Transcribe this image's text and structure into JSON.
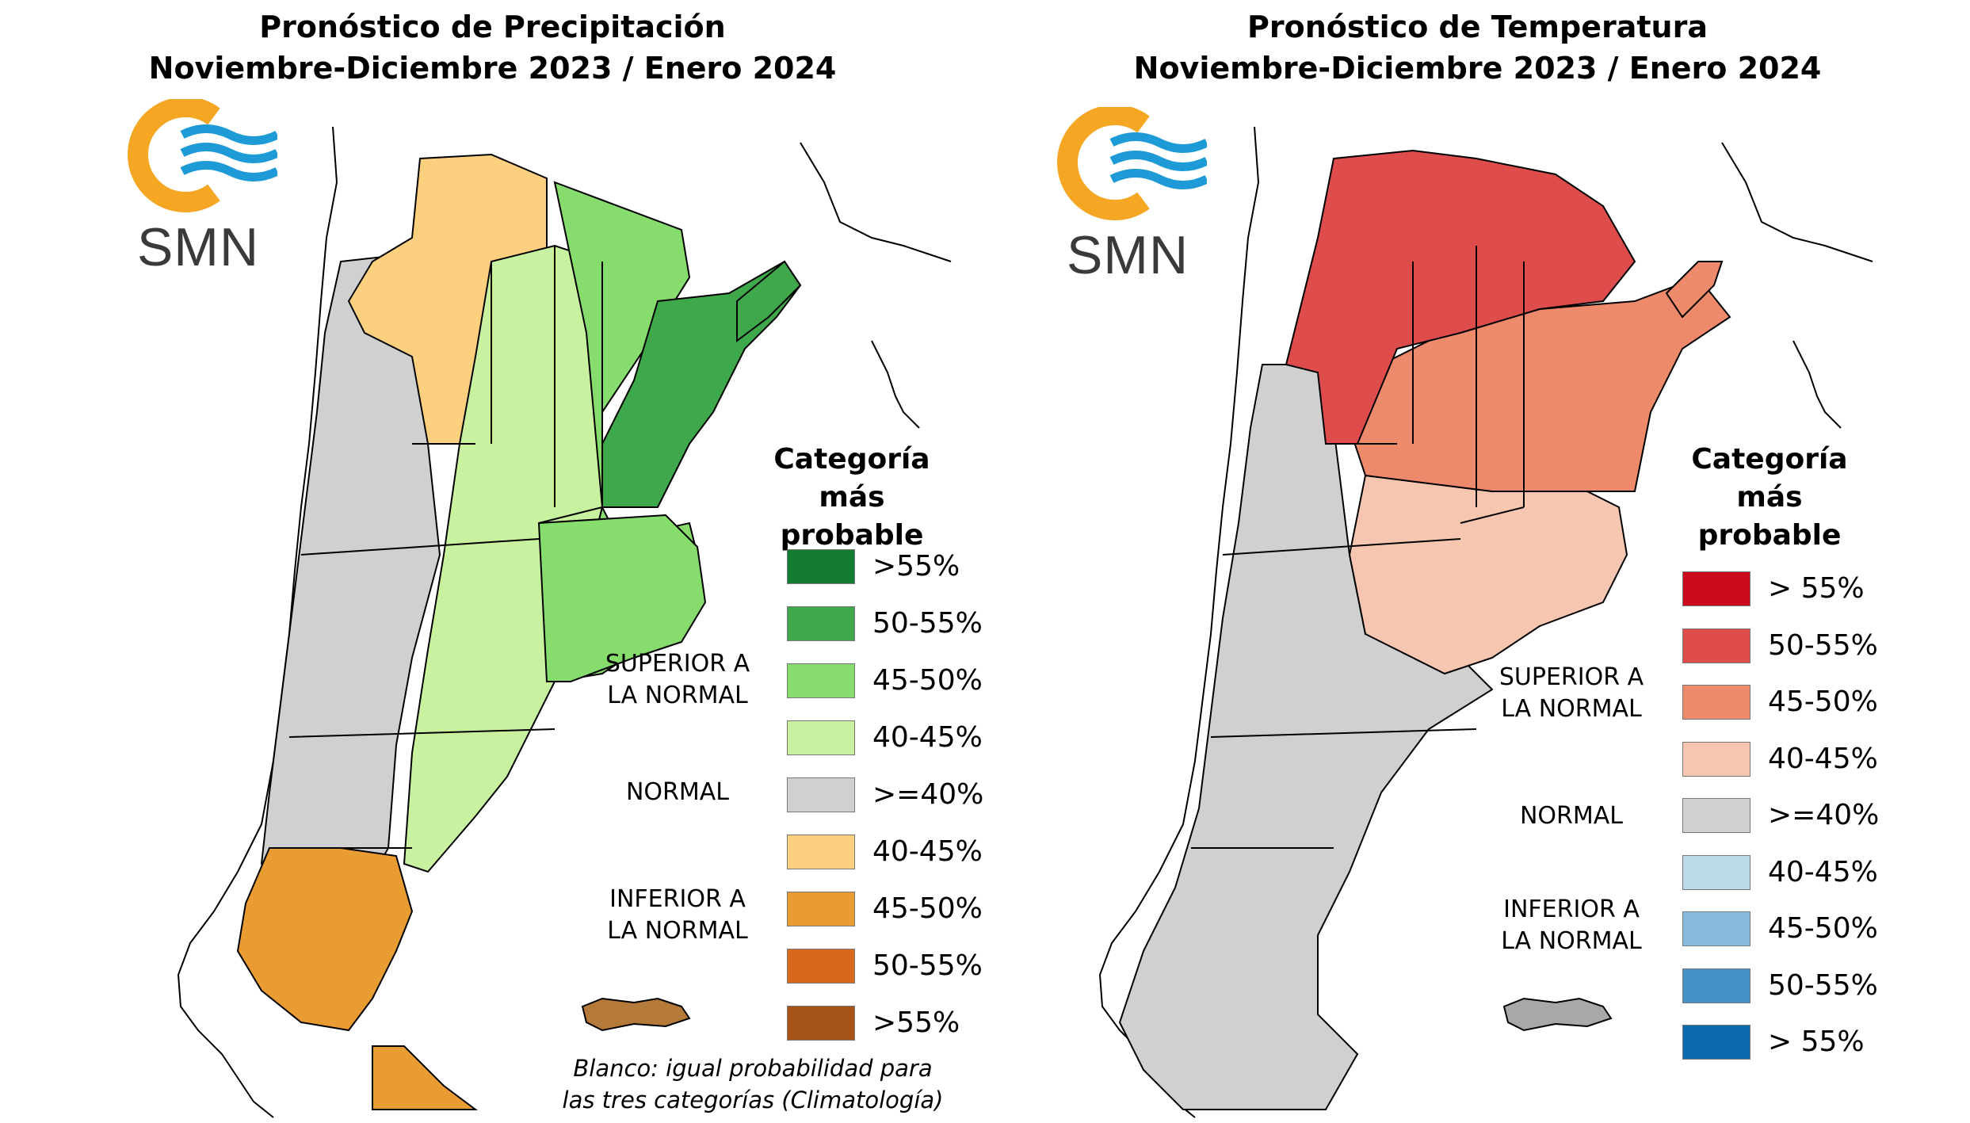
{
  "precipitation": {
    "title_line1": "Pronóstico de Precipitación",
    "title_line2": "Noviembre-Diciembre 2023 / Enero 2024",
    "logo_text": "SMN",
    "legend": {
      "title_line1": "Categoría más",
      "title_line2": "probable",
      "items": [
        {
          "label": ">55%",
          "color": "#137b2f"
        },
        {
          "label": "50-55%",
          "color": "#3fa84a"
        },
        {
          "label": "45-50%",
          "color": "#86dc6c"
        },
        {
          "label": "40-45%",
          "color": "#c8f2a0"
        },
        {
          "label": ">=40%",
          "color": "#d0d0d0"
        },
        {
          "label": "40-45%",
          "color": "#fdd080"
        },
        {
          "label": "45-50%",
          "color": "#e89c32"
        },
        {
          "label": "50-55%",
          "color": "#d8691c"
        },
        {
          "label": ">55%",
          "color": "#a6531a"
        }
      ],
      "categories": {
        "upper_line1": "SUPERIOR A",
        "upper_line2": "LA NORMAL",
        "normal": "NORMAL",
        "lower_line1": "INFERIOR A",
        "lower_line2": "LA NORMAL"
      }
    },
    "note_line1": "Blanco: igual probabilidad para",
    "note_line2": "las tres categorías (Climatología)"
  },
  "temperature": {
    "title_line1": "Pronóstico de Temperatura",
    "title_line2": "Noviembre-Diciembre 2023 / Enero 2024",
    "logo_text": "SMN",
    "legend": {
      "title_line1": "Categoría más",
      "title_line2": "probable",
      "items": [
        {
          "label": "> 55%",
          "color": "#cc0a1e"
        },
        {
          "label": "50-55%",
          "color": "#df4c4c"
        },
        {
          "label": "45-50%",
          "color": "#ee8a6c"
        },
        {
          "label": "40-45%",
          "color": "#f6c6b0"
        },
        {
          "label": ">=40%",
          "color": "#d0d0d0"
        },
        {
          "label": "40-45%",
          "color": "#bcdaea"
        },
        {
          "label": "45-50%",
          "color": "#88bcdc"
        },
        {
          "label": "50-55%",
          "color": "#4692c8"
        },
        {
          "label": "> 55%",
          "color": "#0b6aad"
        }
      ],
      "categories": {
        "upper_line1": "SUPERIOR A",
        "upper_line2": "LA NORMAL",
        "normal": "NORMAL",
        "lower_line1": "INFERIOR A",
        "lower_line2": "LA NORMAL"
      }
    }
  },
  "colors": {
    "logo_orange": "#f5a623",
    "logo_blue": "#1e9ad6",
    "border": "#000000",
    "grey": "#d0d0d0"
  }
}
